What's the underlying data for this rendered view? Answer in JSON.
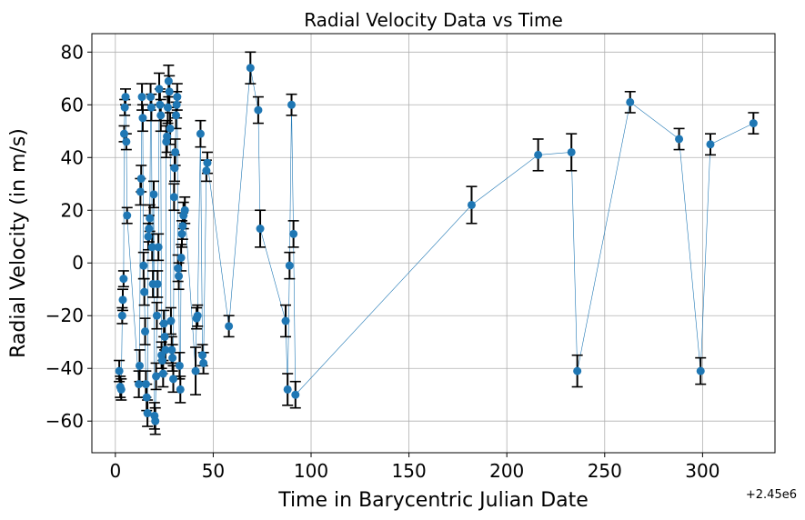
{
  "chart_data": {
    "type": "scatter",
    "title": "Radial Velocity Data vs Time",
    "xlabel": "Time in Barycentric Julian Date",
    "ylabel": "Radial Velocity (in m/s)",
    "x_offset_label": "+2.45e6",
    "xlim": [
      -12,
      337
    ],
    "ylim": [
      -72,
      87
    ],
    "xticks": [
      0,
      50,
      100,
      150,
      200,
      250,
      300
    ],
    "yticks": [
      -60,
      -40,
      -20,
      0,
      20,
      40,
      60,
      80
    ],
    "grid": true,
    "marker_color": "#1f77b4",
    "line_color": "#1f77b4",
    "errorbar_color": "#000000",
    "series": [
      {
        "points": [
          {
            "x": 2,
            "y": -41,
            "err": 4
          },
          {
            "x": 2.5,
            "y": -47,
            "err": 4
          },
          {
            "x": 3,
            "y": -48,
            "err": 4
          },
          {
            "x": 3.5,
            "y": -20,
            "err": 3
          },
          {
            "x": 3.8,
            "y": -14,
            "err": 4
          },
          {
            "x": 4.2,
            "y": -6,
            "err": 3
          },
          {
            "x": 4.5,
            "y": 49,
            "err": 3
          },
          {
            "x": 4.8,
            "y": 59,
            "err": 3
          },
          {
            "x": 5.2,
            "y": 63,
            "err": 3
          },
          {
            "x": 5.6,
            "y": 46,
            "err": 3
          },
          {
            "x": 6,
            "y": 18,
            "err": 3
          },
          {
            "x": 12,
            "y": -46,
            "err": 5
          },
          {
            "x": 12.4,
            "y": -39,
            "err": 6
          },
          {
            "x": 12.8,
            "y": 27,
            "err": 5
          },
          {
            "x": 13.2,
            "y": 32,
            "err": 5
          },
          {
            "x": 13.6,
            "y": 63,
            "err": 5
          },
          {
            "x": 14,
            "y": 55,
            "err": 5
          },
          {
            "x": 14.4,
            "y": -1,
            "err": 5
          },
          {
            "x": 14.8,
            "y": -11,
            "err": 5
          },
          {
            "x": 15.2,
            "y": -26,
            "err": 5
          },
          {
            "x": 15.6,
            "y": -46,
            "err": 5
          },
          {
            "x": 16,
            "y": -51,
            "err": 5
          },
          {
            "x": 16.4,
            "y": -57,
            "err": 5
          },
          {
            "x": 16.8,
            "y": 10,
            "err": 5
          },
          {
            "x": 17.2,
            "y": 13,
            "err": 5
          },
          {
            "x": 17.6,
            "y": 17,
            "err": 5
          },
          {
            "x": 18,
            "y": 63,
            "err": 5
          },
          {
            "x": 18.4,
            "y": 59,
            "err": 5
          },
          {
            "x": 18.8,
            "y": 6,
            "err": 5
          },
          {
            "x": 19.2,
            "y": -8,
            "err": 5
          },
          {
            "x": 19.6,
            "y": 26,
            "err": 5
          },
          {
            "x": 20,
            "y": -58,
            "err": 5
          },
          {
            "x": 20.4,
            "y": -60,
            "err": 5
          },
          {
            "x": 20.8,
            "y": -43,
            "err": 5
          },
          {
            "x": 21.2,
            "y": -20,
            "err": 5
          },
          {
            "x": 21.6,
            "y": -8,
            "err": 5
          },
          {
            "x": 22,
            "y": 6,
            "err": 5
          },
          {
            "x": 22.4,
            "y": 66,
            "err": 6
          },
          {
            "x": 22.8,
            "y": 60,
            "err": 6
          },
          {
            "x": 23.2,
            "y": 56,
            "err": 6
          },
          {
            "x": 23.6,
            "y": -35,
            "err": 5
          },
          {
            "x": 24,
            "y": -37,
            "err": 5
          },
          {
            "x": 24.4,
            "y": -42,
            "err": 5
          },
          {
            "x": 24.8,
            "y": -23,
            "err": 5
          },
          {
            "x": 25.2,
            "y": -28,
            "err": 5
          },
          {
            "x": 25.6,
            "y": -33,
            "err": 5
          },
          {
            "x": 26,
            "y": 46,
            "err": 6
          },
          {
            "x": 26.4,
            "y": 48,
            "err": 6
          },
          {
            "x": 26.8,
            "y": 59,
            "err": 6
          },
          {
            "x": 27.2,
            "y": 69,
            "err": 6
          },
          {
            "x": 27.6,
            "y": 65,
            "err": 6
          },
          {
            "x": 28,
            "y": 51,
            "err": 6
          },
          {
            "x": 28.4,
            "y": -22,
            "err": 5
          },
          {
            "x": 28.8,
            "y": -33,
            "err": 5
          },
          {
            "x": 29.2,
            "y": -36,
            "err": 5
          },
          {
            "x": 29.6,
            "y": -44,
            "err": 5
          },
          {
            "x": 30,
            "y": 25,
            "err": 5
          },
          {
            "x": 30.3,
            "y": 36,
            "err": 5
          },
          {
            "x": 30.6,
            "y": 42,
            "err": 5
          },
          {
            "x": 31,
            "y": 56,
            "err": 5
          },
          {
            "x": 31.3,
            "y": 60,
            "err": 5
          },
          {
            "x": 31.6,
            "y": 63,
            "err": 5
          },
          {
            "x": 32,
            "y": -2,
            "err": 5
          },
          {
            "x": 32.4,
            "y": -5,
            "err": 5
          },
          {
            "x": 32.8,
            "y": -39,
            "err": 5
          },
          {
            "x": 33.2,
            "y": -48,
            "err": 5
          },
          {
            "x": 33.6,
            "y": 2,
            "err": 5
          },
          {
            "x": 34,
            "y": 11,
            "err": 5
          },
          {
            "x": 34.4,
            "y": 14,
            "err": 5
          },
          {
            "x": 34.8,
            "y": 18,
            "err": 5
          },
          {
            "x": 35.5,
            "y": 20,
            "err": 5
          },
          {
            "x": 41,
            "y": -41,
            "err": 9
          },
          {
            "x": 41.5,
            "y": -21,
            "err": 4
          },
          {
            "x": 42,
            "y": -20,
            "err": 4
          },
          {
            "x": 43.5,
            "y": 49,
            "err": 5
          },
          {
            "x": 44.5,
            "y": -35,
            "err": 4
          },
          {
            "x": 45,
            "y": -38,
            "err": 4
          },
          {
            "x": 46.5,
            "y": 35,
            "err": 4
          },
          {
            "x": 47,
            "y": 38,
            "err": 4
          },
          {
            "x": 58,
            "y": -24,
            "err": 4
          },
          {
            "x": 69,
            "y": 74,
            "err": 6
          },
          {
            "x": 73,
            "y": 58,
            "err": 5
          },
          {
            "x": 74,
            "y": 13,
            "err": 7
          },
          {
            "x": 87,
            "y": -22,
            "err": 6
          },
          {
            "x": 88,
            "y": -48,
            "err": 6
          },
          {
            "x": 89,
            "y": -1,
            "err": 5
          },
          {
            "x": 90,
            "y": 60,
            "err": 4
          },
          {
            "x": 91,
            "y": 11,
            "err": 5
          },
          {
            "x": 92,
            "y": -50,
            "err": 5
          },
          {
            "x": 182,
            "y": 22,
            "err": 7
          },
          {
            "x": 216,
            "y": 41,
            "err": 6
          },
          {
            "x": 233,
            "y": 42,
            "err": 7
          },
          {
            "x": 236,
            "y": -41,
            "err": 6
          },
          {
            "x": 263,
            "y": 61,
            "err": 4
          },
          {
            "x": 288,
            "y": 47,
            "err": 4
          },
          {
            "x": 299,
            "y": -41,
            "err": 5
          },
          {
            "x": 304,
            "y": 45,
            "err": 4
          },
          {
            "x": 326,
            "y": 53,
            "err": 4
          }
        ]
      }
    ]
  }
}
